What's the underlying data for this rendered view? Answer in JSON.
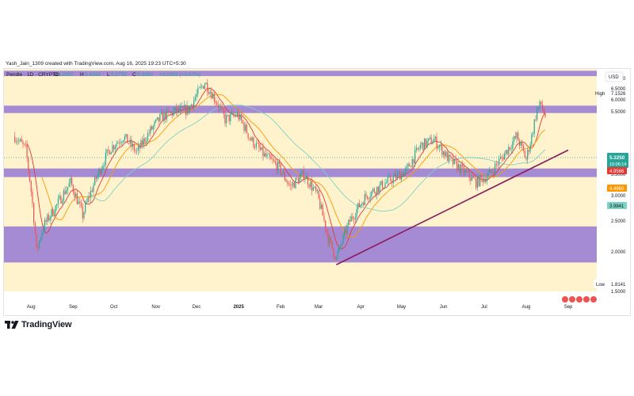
{
  "credit": "Yash_Jain_1309 created with TradingView.com, Aug 16, 2025 19:23 UTC+5:30",
  "legend": {
    "symbol": "Pendle · 1D · CRYPTO",
    "open_label": "O",
    "open": "5.2897",
    "high_label": "H",
    "high": "5.4342",
    "low_label": "L",
    "low": "5.2755",
    "close_label": "C",
    "close": "5.3250",
    "change": "+0.0353 (+0.67%)"
  },
  "currency": "USD",
  "price_scale": {
    "high_tag": "High",
    "high_value": "7.1526",
    "low_tag": "Low",
    "low_value": "1.8141",
    "last_price": "5.3250",
    "countdown": "10:06:14",
    "ma_short_value": "4.9566",
    "ma_mid_value": "4.4960",
    "ma_long_value": "3.9841"
  },
  "brand": "TradingView",
  "colors": {
    "background": "#fef3cd",
    "zone": "#9b7fd4",
    "candle_up": "#26a69a",
    "candle_down": "#ef5350",
    "ma_short": "#e53935",
    "ma_mid": "#ff9800",
    "ma_long": "#7ed3c6",
    "trendline": "#8b1a5c",
    "last_price_tag": "#26a69a"
  },
  "chart_data": {
    "type": "candlestick",
    "ylim": [
      1.5,
      7.5
    ],
    "y_ticks": [
      "7.0000",
      "6.5000",
      "6.0000",
      "5.5000",
      "3.5000",
      "3.0000",
      "2.5000",
      "2.0000",
      "1.5000"
    ],
    "x_ticks": [
      "Aug",
      "Sep",
      "Oct",
      "Nov",
      "Dec",
      "2025",
      "Feb",
      "Mar",
      "Apr",
      "May",
      "Jun",
      "Jul",
      "Aug",
      "Sep"
    ],
    "price_path": [
      [
        "2024-07-20",
        4.6
      ],
      [
        "2024-07-28",
        4.2
      ],
      [
        "2024-08-05",
        2.0
      ],
      [
        "2024-08-10",
        2.4
      ],
      [
        "2024-08-20",
        2.8
      ],
      [
        "2024-08-30",
        3.3
      ],
      [
        "2024-09-08",
        2.6
      ],
      [
        "2024-09-18",
        3.4
      ],
      [
        "2024-09-28",
        4.2
      ],
      [
        "2024-10-08",
        4.6
      ],
      [
        "2024-10-18",
        4.1
      ],
      [
        "2024-10-28",
        4.8
      ],
      [
        "2024-11-05",
        5.3
      ],
      [
        "2024-11-15",
        5.5
      ],
      [
        "2024-11-25",
        5.6
      ],
      [
        "2024-12-03",
        6.4
      ],
      [
        "2024-12-07",
        6.8
      ],
      [
        "2024-12-14",
        6.1
      ],
      [
        "2024-12-22",
        5.2
      ],
      [
        "2024-12-31",
        5.4
      ],
      [
        "2025-01-10",
        4.5
      ],
      [
        "2025-01-20",
        4.0
      ],
      [
        "2025-01-30",
        3.7
      ],
      [
        "2025-02-08",
        3.2
      ],
      [
        "2025-02-18",
        3.5
      ],
      [
        "2025-02-28",
        3.0
      ],
      [
        "2025-03-08",
        2.2
      ],
      [
        "2025-03-14",
        1.9
      ],
      [
        "2025-03-24",
        2.5
      ],
      [
        "2025-04-05",
        3.0
      ],
      [
        "2025-04-15",
        3.2
      ],
      [
        "2025-04-25",
        3.4
      ],
      [
        "2025-05-05",
        3.6
      ],
      [
        "2025-05-15",
        4.3
      ],
      [
        "2025-05-25",
        4.5
      ],
      [
        "2025-06-05",
        3.9
      ],
      [
        "2025-06-15",
        3.6
      ],
      [
        "2025-06-25",
        3.3
      ],
      [
        "2025-07-05",
        3.5
      ],
      [
        "2025-07-15",
        4.0
      ],
      [
        "2025-07-25",
        4.6
      ],
      [
        "2025-08-01",
        3.9
      ],
      [
        "2025-08-05",
        4.6
      ],
      [
        "2025-08-09",
        5.6
      ],
      [
        "2025-08-12",
        5.8
      ],
      [
        "2025-08-15",
        5.33
      ]
    ],
    "zones": [
      {
        "from": 7.12,
        "to": 7.4
      },
      {
        "from": 5.45,
        "to": 5.75
      },
      {
        "from": 3.43,
        "to": 3.65
      },
      {
        "from": 1.85,
        "to": 2.4
      }
    ],
    "trendline": [
      [
        "2025-03-14",
        1.82
      ],
      [
        "2025-09-01",
        4.17
      ]
    ]
  }
}
